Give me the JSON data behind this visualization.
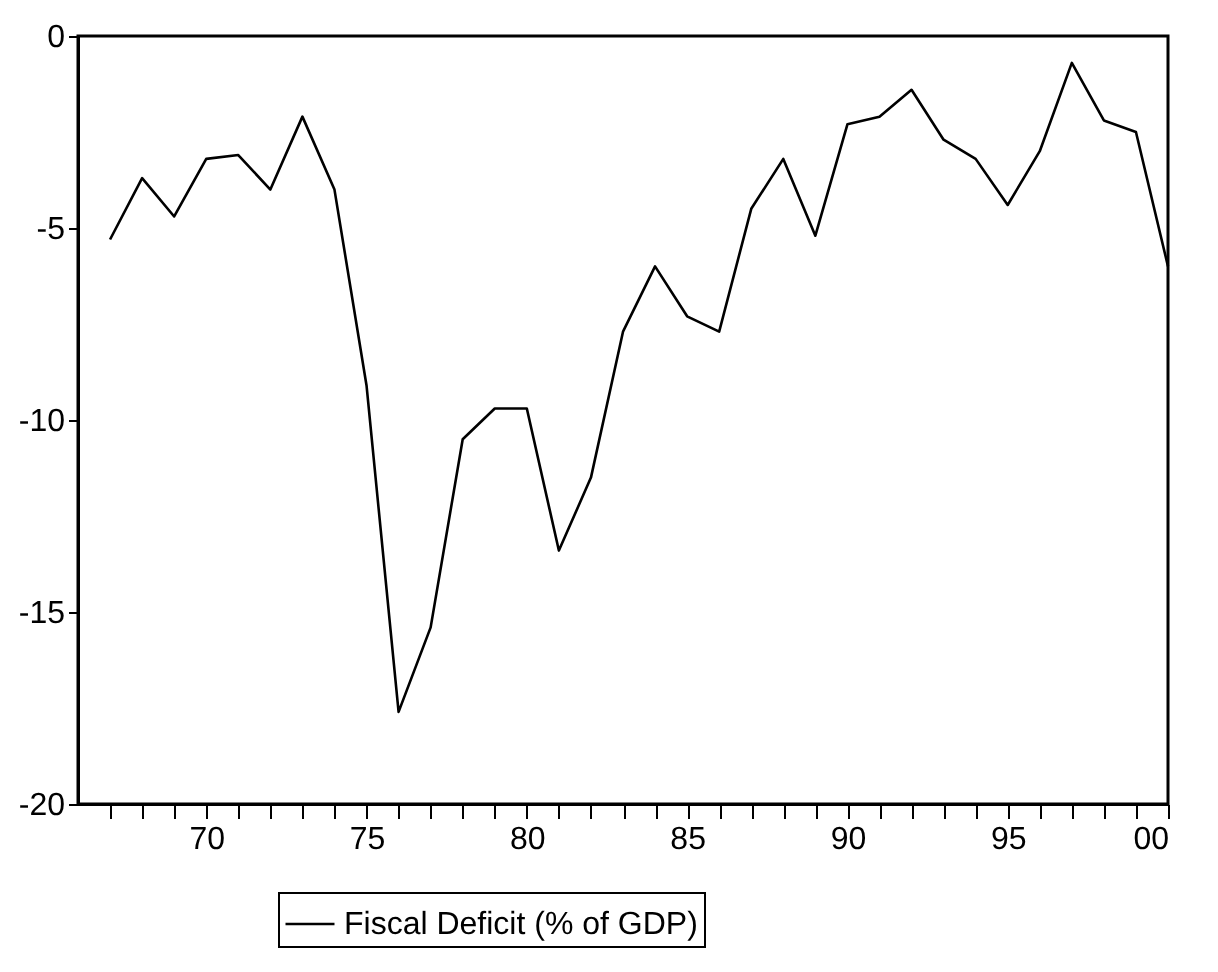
{
  "chart_data": {
    "type": "line",
    "x": [
      1967,
      1968,
      1969,
      1970,
      1971,
      1972,
      1973,
      1974,
      1975,
      1976,
      1977,
      1978,
      1979,
      1980,
      1981,
      1982,
      1983,
      1984,
      1985,
      1986,
      1987,
      1988,
      1989,
      1990,
      1991,
      1992,
      1993,
      1994,
      1995,
      1996,
      1997,
      1998,
      1999,
      2000
    ],
    "series": [
      {
        "name": "Fiscal Deficit (% of GDP)",
        "color": "#000000",
        "values": [
          -5.3,
          -3.7,
          -4.7,
          -3.2,
          -3.1,
          -4.0,
          -2.1,
          -4.0,
          -9.1,
          -17.6,
          -15.4,
          -10.5,
          -9.7,
          -9.7,
          -13.4,
          -11.5,
          -7.7,
          -6.0,
          -7.3,
          -7.7,
          -4.5,
          -3.2,
          -5.2,
          -2.3,
          -2.1,
          -1.4,
          -2.7,
          -3.2,
          -4.4,
          -3.0,
          -0.7,
          -2.2,
          -2.5,
          -6.0
        ]
      }
    ],
    "xlim": [
      1966,
      2000
    ],
    "xticks": [
      {
        "value": 1967,
        "label": null
      },
      {
        "value": 1968,
        "label": null
      },
      {
        "value": 1969,
        "label": null
      },
      {
        "value": 1970,
        "label": "70"
      },
      {
        "value": 1971,
        "label": null
      },
      {
        "value": 1972,
        "label": null
      },
      {
        "value": 1973,
        "label": null
      },
      {
        "value": 1974,
        "label": null
      },
      {
        "value": 1975,
        "label": "75"
      },
      {
        "value": 1976,
        "label": null
      },
      {
        "value": 1977,
        "label": null
      },
      {
        "value": 1978,
        "label": null
      },
      {
        "value": 1979,
        "label": null
      },
      {
        "value": 1980,
        "label": "80"
      },
      {
        "value": 1981,
        "label": null
      },
      {
        "value": 1982,
        "label": null
      },
      {
        "value": 1983,
        "label": null
      },
      {
        "value": 1984,
        "label": null
      },
      {
        "value": 1985,
        "label": "85"
      },
      {
        "value": 1986,
        "label": null
      },
      {
        "value": 1987,
        "label": null
      },
      {
        "value": 1988,
        "label": null
      },
      {
        "value": 1989,
        "label": null
      },
      {
        "value": 1990,
        "label": "90"
      },
      {
        "value": 1991,
        "label": null
      },
      {
        "value": 1992,
        "label": null
      },
      {
        "value": 1993,
        "label": null
      },
      {
        "value": 1994,
        "label": null
      },
      {
        "value": 1995,
        "label": "95"
      },
      {
        "value": 1996,
        "label": null
      },
      {
        "value": 1997,
        "label": null
      },
      {
        "value": 1998,
        "label": null
      },
      {
        "value": 1999,
        "label": null
      },
      {
        "value": 2000,
        "label": "00"
      }
    ],
    "ylim": [
      -20,
      0
    ],
    "yticks": [
      0,
      -5,
      -10,
      -15,
      -20
    ],
    "grid": false,
    "legend": "bottom",
    "line_style": "solid",
    "marker": "none"
  }
}
